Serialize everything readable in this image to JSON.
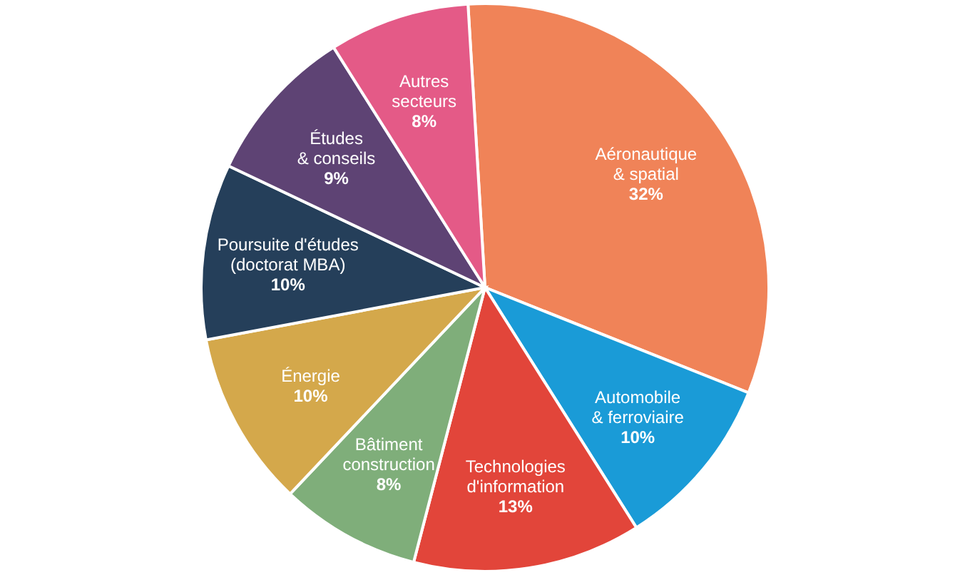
{
  "chart_data": {
    "type": "pie",
    "categories": [
      "Aéronautique\n& spatial",
      "Automobile\n& ferroviaire",
      "Technologies\nd'information",
      "Bâtiment\nconstruction",
      "Énergie",
      "Poursuite d'études\n(doctorat MBA)",
      "Études\n& conseils",
      "Autres\nsecteurs"
    ],
    "values": [
      32,
      10,
      13,
      8,
      10,
      10,
      9,
      8
    ],
    "value_labels": [
      "32%",
      "10%",
      "13%",
      "8%",
      "10%",
      "10%",
      "9%",
      "8%"
    ],
    "colors": [
      "#f08358",
      "#1a9bd7",
      "#e2453a",
      "#7fae7a",
      "#d4a84b",
      "#253f5a",
      "#5e4374",
      "#e45a87"
    ]
  }
}
